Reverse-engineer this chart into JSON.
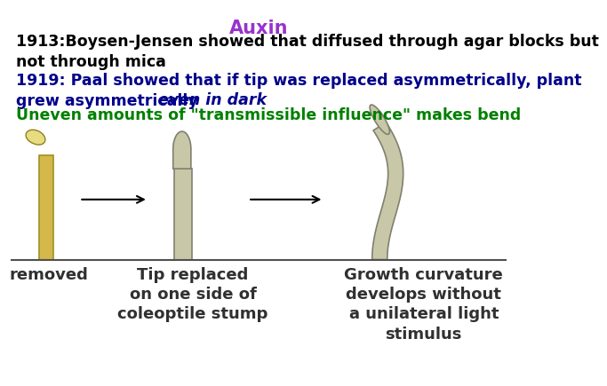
{
  "title": "Auxin",
  "title_color": "#9932CC",
  "title_fontsize": 15,
  "line1": "1913:Boysen-Jensen showed that diffused through agar blocks but\nnot through mica",
  "line1_color": "#000000",
  "line2_part1": "1919: Paal showed that if tip was replaced asymmetrically, plant\ngrew asymmetrically ",
  "line2_italic": "even in dark",
  "line2_color": "#00008B",
  "line3": "Uneven amounts of \"transmissible influence\" makes bend",
  "line3_color": "#008000",
  "text_fontsize": 12.5,
  "bg_color": "#ffffff",
  "stem_color_yellow": "#D4B84A",
  "stem_color_gray": "#C8C8A8",
  "tip_color_yellow": "#E8DC80",
  "tip_color_gray": "#C8C8A8",
  "ground_color": "#606060",
  "label1": "removed",
  "label2": "Tip replaced\non one side of\ncoleoptile stump",
  "label3": "Growth curvature\ndevelops without\na unilateral light\nstimulus",
  "label_fontsize": 13,
  "label_color": "#303030"
}
